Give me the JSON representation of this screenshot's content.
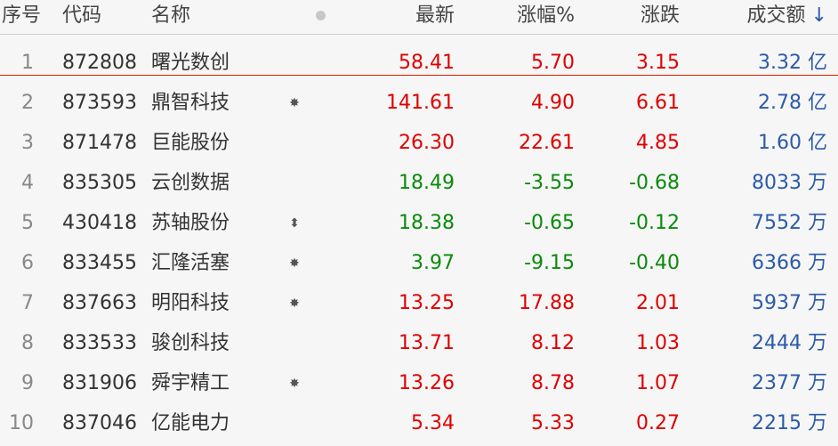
{
  "header": {
    "index": "序号",
    "code": "代码",
    "name": "名称",
    "price": "最新",
    "pct": "涨幅%",
    "change": "涨跌",
    "amount": "成交额",
    "sort_icon": "↓"
  },
  "colors": {
    "up": "#e00000",
    "down": "#0a8a0a",
    "amount": "#2b5aa8",
    "selected_line": "#cc2200"
  },
  "rows": [
    {
      "index": "1",
      "code": "872808",
      "name": "曙光数创",
      "mark": "",
      "price": "58.41",
      "pct": "5.70",
      "change": "3.15",
      "amount": "3.32 亿",
      "dir": "up"
    },
    {
      "index": "2",
      "code": "873593",
      "name": "鼎智科技",
      "mark": "✸",
      "price": "141.61",
      "pct": "4.90",
      "change": "6.61",
      "amount": "2.78 亿",
      "dir": "up"
    },
    {
      "index": "3",
      "code": "871478",
      "name": "巨能股份",
      "mark": "",
      "price": "26.30",
      "pct": "22.61",
      "change": "4.85",
      "amount": "1.60 亿",
      "dir": "up"
    },
    {
      "index": "4",
      "code": "835305",
      "name": "云创数据",
      "mark": "",
      "price": "18.49",
      "pct": "-3.55",
      "change": "-0.68",
      "amount": "8033 万",
      "dir": "down"
    },
    {
      "index": "5",
      "code": "430418",
      "name": "苏轴股份",
      "mark": "⬍",
      "price": "18.38",
      "pct": "-0.65",
      "change": "-0.12",
      "amount": "7552 万",
      "dir": "down"
    },
    {
      "index": "6",
      "code": "833455",
      "name": "汇隆活塞",
      "mark": "✸",
      "price": "3.97",
      "pct": "-9.15",
      "change": "-0.40",
      "amount": "6366 万",
      "dir": "down"
    },
    {
      "index": "7",
      "code": "837663",
      "name": "明阳科技",
      "mark": "✸",
      "price": "13.25",
      "pct": "17.88",
      "change": "2.01",
      "amount": "5937 万",
      "dir": "up"
    },
    {
      "index": "8",
      "code": "833533",
      "name": "骏创科技",
      "mark": "",
      "price": "13.71",
      "pct": "8.12",
      "change": "1.03",
      "amount": "2444 万",
      "dir": "up"
    },
    {
      "index": "9",
      "code": "831906",
      "name": "舜宇精工",
      "mark": "✸",
      "price": "13.26",
      "pct": "8.78",
      "change": "1.07",
      "amount": "2377 万",
      "dir": "up"
    },
    {
      "index": "10",
      "code": "837046",
      "name": "亿能电力",
      "mark": "",
      "price": "5.34",
      "pct": "5.33",
      "change": "0.27",
      "amount": "2215 万",
      "dir": "up"
    }
  ]
}
